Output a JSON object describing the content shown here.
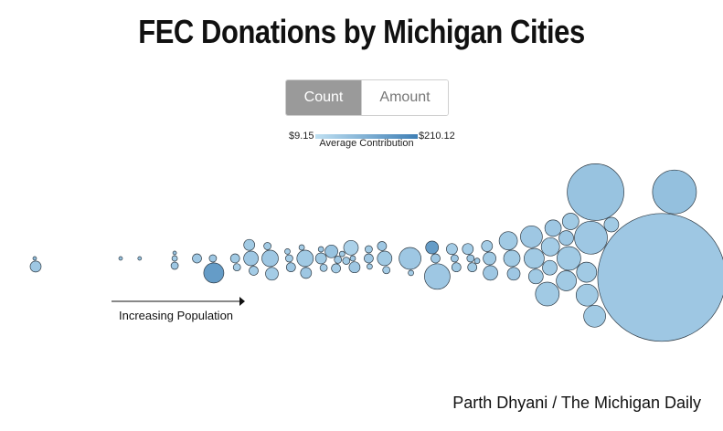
{
  "title": "FEC Donations by Michigan Cities",
  "toggle": {
    "count_label": "Count",
    "amount_label": "Amount",
    "selected": "Count"
  },
  "legend": {
    "min": "$9.15",
    "max": "$210.12",
    "label": "Average Contribution",
    "min_color": "#bfe0f2",
    "max_color": "#3f7fb5"
  },
  "axis_label": "Increasing Population",
  "credit": "Parth Dhyani / The Michigan Daily",
  "chart_data": {
    "type": "scatter",
    "title": "FEC Donations by Michigan Cities",
    "encoding": "bubble area = donation count; color = average contribution; x = population rank",
    "color_range": [
      9.15,
      210.12
    ],
    "clusters": [
      {
        "pos": 0.0,
        "bubbles": [
          {
            "r": 2,
            "avg": 80
          },
          {
            "r": 6,
            "avg": 60
          }
        ]
      },
      {
        "pos": 0.27,
        "bubbles": [
          {
            "r": 2,
            "avg": 70
          }
        ]
      },
      {
        "pos": 0.33,
        "bubbles": [
          {
            "r": 2,
            "avg": 70
          }
        ]
      },
      {
        "pos": 0.44,
        "bubbles": [
          {
            "r": 3,
            "avg": 50
          },
          {
            "r": 4,
            "avg": 60
          },
          {
            "r": 2,
            "avg": 70
          }
        ]
      },
      {
        "pos": 0.51,
        "bubbles": [
          {
            "r": 5,
            "avg": 60
          }
        ]
      },
      {
        "pos": 0.56,
        "bubbles": [
          {
            "r": 4,
            "avg": 60
          },
          {
            "r": 11,
            "avg": 150
          }
        ]
      },
      {
        "pos": 0.63,
        "bubbles": [
          {
            "r": 5,
            "avg": 55
          },
          {
            "r": 4,
            "avg": 50
          }
        ]
      },
      {
        "pos": 0.68,
        "bubbles": [
          {
            "r": 8,
            "avg": 60
          },
          {
            "r": 5,
            "avg": 50
          },
          {
            "r": 6,
            "avg": 55
          }
        ]
      },
      {
        "pos": 0.74,
        "bubbles": [
          {
            "r": 9,
            "avg": 60
          },
          {
            "r": 7,
            "avg": 50
          },
          {
            "r": 4,
            "avg": 55
          }
        ]
      },
      {
        "pos": 0.8,
        "bubbles": [
          {
            "r": 4,
            "avg": 50
          },
          {
            "r": 5,
            "avg": 60
          },
          {
            "r": 3,
            "avg": 50
          }
        ]
      },
      {
        "pos": 0.85,
        "bubbles": [
          {
            "r": 9,
            "avg": 55
          },
          {
            "r": 6,
            "avg": 60
          },
          {
            "r": 3,
            "avg": 50
          }
        ]
      },
      {
        "pos": 0.9,
        "bubbles": [
          {
            "r": 6,
            "avg": 55
          },
          {
            "r": 4,
            "avg": 50
          },
          {
            "r": 3,
            "avg": 60
          },
          {
            "r": 7,
            "avg": 70
          }
        ]
      },
      {
        "pos": 0.95,
        "bubbles": [
          {
            "r": 4,
            "avg": 60
          },
          {
            "r": 5,
            "avg": 50
          },
          {
            "r": 3,
            "avg": 55
          }
        ]
      },
      {
        "pos": 1.0,
        "bubbles": [
          {
            "r": 3,
            "avg": 60
          },
          {
            "r": 6,
            "avg": 60
          },
          {
            "r": 8,
            "avg": 40
          },
          {
            "r": 4,
            "avg": 55
          }
        ]
      },
      {
        "pos": 1.05,
        "bubbles": [
          {
            "r": 5,
            "avg": 60
          },
          {
            "r": 3,
            "avg": 50
          },
          {
            "r": 4,
            "avg": 55
          }
        ]
      },
      {
        "pos": 1.1,
        "bubbles": [
          {
            "r": 8,
            "avg": 55
          },
          {
            "r": 4,
            "avg": 50
          },
          {
            "r": 5,
            "avg": 60
          }
        ]
      },
      {
        "pos": 1.18,
        "bubbles": [
          {
            "r": 12,
            "avg": 60
          },
          {
            "r": 3,
            "avg": 50
          }
        ]
      },
      {
        "pos": 1.26,
        "bubbles": [
          {
            "r": 5,
            "avg": 60
          },
          {
            "r": 14,
            "avg": 60
          },
          {
            "r": 7,
            "avg": 150
          }
        ]
      },
      {
        "pos": 1.32,
        "bubbles": [
          {
            "r": 4,
            "avg": 60
          },
          {
            "r": 5,
            "avg": 55
          },
          {
            "r": 6,
            "avg": 50
          }
        ]
      },
      {
        "pos": 1.37,
        "bubbles": [
          {
            "r": 4,
            "avg": 60
          },
          {
            "r": 5,
            "avg": 55
          },
          {
            "r": 6,
            "avg": 50
          },
          {
            "r": 3,
            "avg": 60
          }
        ]
      },
      {
        "pos": 1.43,
        "bubbles": [
          {
            "r": 7,
            "avg": 55
          },
          {
            "r": 8,
            "avg": 60
          },
          {
            "r": 6,
            "avg": 50
          }
        ]
      },
      {
        "pos": 1.5,
        "bubbles": [
          {
            "r": 9,
            "avg": 55
          },
          {
            "r": 7,
            "avg": 60
          },
          {
            "r": 10,
            "avg": 55
          }
        ]
      },
      {
        "pos": 1.57,
        "bubbles": [
          {
            "r": 11,
            "avg": 55
          },
          {
            "r": 8,
            "avg": 55
          },
          {
            "r": 12,
            "avg": 60
          },
          {
            "r": 10,
            "avg": 50
          },
          {
            "r": 8,
            "avg": 55
          }
        ]
      },
      {
        "pos": 1.66,
        "bubbles": [
          {
            "r": 13,
            "avg": 55
          },
          {
            "r": 11,
            "avg": 55
          },
          {
            "r": 8,
            "avg": 60
          },
          {
            "r": 18,
            "avg": 60
          },
          {
            "r": 11,
            "avg": 55
          },
          {
            "r": 9,
            "avg": 60
          },
          {
            "r": 13,
            "avg": 55
          }
        ]
      },
      {
        "pos": 1.78,
        "bubbles": [
          {
            "r": 70,
            "avg": 60
          },
          {
            "r": 12,
            "avg": 55
          },
          {
            "r": 8,
            "avg": 55
          },
          {
            "r": 31,
            "avg": 70
          },
          {
            "r": 12,
            "avg": 55
          },
          {
            "r": 9,
            "avg": 55
          }
        ]
      },
      {
        "pos": 2.0,
        "bubbles": [
          {
            "r": 24,
            "avg": 75
          }
        ]
      }
    ]
  }
}
